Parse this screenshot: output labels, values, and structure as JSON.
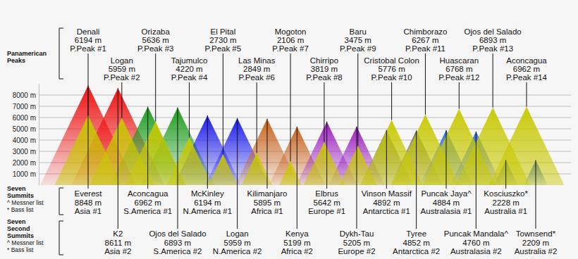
{
  "chart_data": {
    "type": "mountain",
    "ylim": [
      0,
      9000
    ],
    "yticks": [
      {
        "value": 1000,
        "label": "1000 m"
      },
      {
        "value": 2000,
        "label": "2000 m"
      },
      {
        "value": 3000,
        "label": "3000 m"
      },
      {
        "value": 4000,
        "label": "4000 m"
      },
      {
        "value": 5000,
        "label": "5000 m"
      },
      {
        "value": 6000,
        "label": "6000 m"
      },
      {
        "value": 7000,
        "label": "7000 m"
      },
      {
        "value": 8000,
        "label": "8000 m"
      }
    ],
    "grid": true,
    "data_labels": true,
    "series": [
      {
        "name": "Panamerican Peaks",
        "color": "#c8c800",
        "categories": [
          "Denali",
          "Logan",
          "Orizaba",
          "Tajumulco",
          "El Pital",
          "Las Minas",
          "Mogoton",
          "Chirripo",
          "Baru",
          "Cristobal Colon",
          "Chimborazo",
          "Huascaran",
          "Ojos del Salado",
          "Aconcagua"
        ],
        "values": [
          6194,
          5959,
          5636,
          4220,
          2730,
          2849,
          2106,
          3819,
          3475,
          5776,
          6267,
          6768,
          6893,
          6962
        ],
        "value_labels": [
          "6194 m",
          "5959 m",
          "5636 m",
          "4220 m",
          "2730 m",
          "2849 m",
          "2106 m",
          "3819 m",
          "3475 m",
          "5776 m",
          "6267 m",
          "6768 m",
          "6893 m",
          "6962 m"
        ],
        "ranks": [
          "P.Peak #1",
          "P.Peak #2",
          "P.Peak #3",
          "P.Peak #4",
          "P.Peak #5",
          "P.Peak #6",
          "P.Peak #7",
          "P.Peak #8",
          "P.Peak #9",
          "P.Peak #10",
          "P.Peak #11",
          "P.Peak #12",
          "P.Peak #13",
          "P.Peak #14"
        ]
      },
      {
        "name": "Seven Summits",
        "notes": [
          "^ Messner list",
          "* Bass list"
        ],
        "colors": [
          "#ee1111",
          "#1e9e1e",
          "#1a1aee",
          "#c8641e",
          "#9b1fc0",
          "#707070",
          "#2f6ed8",
          "#1f5fd8"
        ],
        "categories": [
          "Everest",
          "Aconcagua",
          "McKinley",
          "Kilimanjaro",
          "Elbrus",
          "Vinson Massif",
          "Puncak Jaya^",
          "Kosciuszko*"
        ],
        "values": [
          8848,
          6962,
          6194,
          5895,
          5642,
          4892,
          4884,
          2228
        ],
        "value_labels": [
          "8848 m",
          "6962 m",
          "6194 m",
          "5895 m",
          "5642 m",
          "4892 m",
          "4884 m",
          "2228 m"
        ],
        "ranks": [
          "Asia #1",
          "S.America #1",
          "N.America #1",
          "Africa #1",
          "Europe #1",
          "Antarctica #1",
          "Australasia #1",
          "Australia #1"
        ]
      },
      {
        "name": "Seven Second Summits",
        "notes": [
          "^ Messner list",
          "* Bass list"
        ],
        "colors": [
          "#ee1111",
          "#1e9e1e",
          "#1a1aee",
          "#c8641e",
          "#9b1fc0",
          "#707070",
          "#2f6ed8",
          "#1f5fd8"
        ],
        "categories": [
          "K2",
          "Ojos del Salado",
          "Logan",
          "Kenya",
          "Dykh-Tau",
          "Tyree",
          "Puncak Mandala^",
          "Townsend*"
        ],
        "values": [
          8611,
          6893,
          5959,
          5199,
          5205,
          4852,
          4760,
          2209
        ],
        "value_labels": [
          "8611 m",
          "6893 m",
          "5959 m",
          "5199 m",
          "5205 m",
          "4852 m",
          "4760 m",
          "2209 m"
        ],
        "ranks": [
          "Asia #2",
          "S.America #2",
          "N.America #2",
          "Africa #2",
          "Europe #2",
          "Antarctica #2",
          "Australasia #2",
          "Australia #2"
        ]
      }
    ]
  }
}
